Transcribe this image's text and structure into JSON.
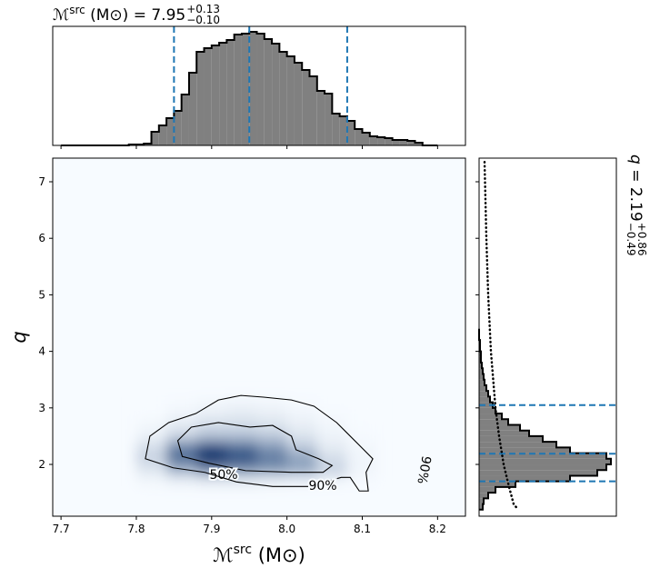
{
  "chart_data": [
    {
      "type": "histogram",
      "title": {
        "base": "ℳ",
        "sup": "src",
        "rest": " (M⊙) = ",
        "value": "7.95",
        "upper": "+0.13",
        "lower": "−0.10"
      },
      "bins": [
        7.7,
        7.71,
        7.72,
        7.73,
        7.74,
        7.75,
        7.76,
        7.77,
        7.78,
        7.79,
        7.8,
        7.81,
        7.82,
        7.83,
        7.84,
        7.85,
        7.86,
        7.87,
        7.88,
        7.89,
        7.9,
        7.91,
        7.92,
        7.93,
        7.94,
        7.95,
        7.96,
        7.97,
        7.98,
        7.99,
        8.0,
        8.01,
        8.02,
        8.03,
        8.04,
        8.05,
        8.06,
        8.07,
        8.08,
        8.09,
        8.1,
        8.11,
        8.12,
        8.13,
        8.14,
        8.15,
        8.16,
        8.17,
        8.18,
        8.19,
        8.2
      ],
      "values": [
        0,
        0,
        0,
        0,
        0,
        0,
        0,
        0,
        0,
        1,
        1,
        2,
        15,
        22,
        30,
        38,
        56,
        80,
        103,
        107,
        110,
        113,
        116,
        122,
        123,
        125,
        123,
        117,
        112,
        103,
        98,
        91,
        83,
        76,
        60,
        57,
        35,
        32,
        27,
        18,
        14,
        10,
        9,
        8,
        6,
        6,
        5,
        3,
        0,
        0
      ],
      "color": "#808080",
      "xlim": [
        7.689,
        8.237
      ],
      "xticks": [
        7.7,
        7.8,
        7.9,
        {
          "value": 8.0,
          "label": "8.0"
        },
        8.1,
        8.2
      ],
      "ylim": [
        0,
        131
      ],
      "quantiles": [
        7.85,
        7.95,
        8.08
      ],
      "quantile_color": "#1f77b4"
    },
    {
      "type": "heatmap",
      "xlabel": {
        "base": "ℳ",
        "sup": "src",
        "rest": " (M⊙)"
      },
      "ylabel": "q",
      "x_edges": [
        7.8,
        7.84,
        7.88,
        7.92,
        7.96,
        8.0,
        8.04,
        8.08,
        8.12
      ],
      "y_edges": [
        1.6,
        1.8,
        2.0,
        2.2,
        2.4,
        2.6,
        2.8,
        3.0,
        3.2
      ],
      "values": [
        [
          0.02,
          0.05,
          0.08,
          0.08,
          0.06,
          0.04,
          0.02,
          0.01
        ],
        [
          0.1,
          0.35,
          0.55,
          0.5,
          0.45,
          0.4,
          0.2,
          0.03
        ],
        [
          0.2,
          0.7,
          1.0,
          0.85,
          0.65,
          0.45,
          0.15,
          0.03
        ],
        [
          0.15,
          0.6,
          0.85,
          0.7,
          0.5,
          0.25,
          0.08,
          0.02
        ],
        [
          0.05,
          0.2,
          0.3,
          0.3,
          0.25,
          0.12,
          0.04,
          0.01
        ],
        [
          0.02,
          0.08,
          0.15,
          0.15,
          0.12,
          0.06,
          0.02,
          0
        ],
        [
          0,
          0.03,
          0.06,
          0.08,
          0.06,
          0.03,
          0.01,
          0
        ],
        [
          0,
          0.01,
          0.02,
          0.03,
          0.02,
          0.01,
          0,
          0
        ]
      ],
      "cmap": [
        "#f7fbff",
        "#08306b"
      ],
      "xlim": [
        7.689,
        8.237
      ],
      "xticks": [
        7.7,
        7.8,
        7.9,
        {
          "value": 8.0,
          "label": "8.0"
        },
        8.1,
        8.2
      ],
      "ylim": [
        1.084,
        7.418
      ],
      "yticks": [
        2,
        3,
        4,
        5,
        6,
        7
      ],
      "contours": [
        {
          "labels": [
            "50%"
          ],
          "x": [
            7.855,
            7.873,
            7.909,
            7.951,
            7.981,
            8.006,
            8.012,
            8.042,
            8.06,
            8.048,
            8.006,
            7.945,
            7.897,
            7.861
          ],
          "y": [
            2.42,
            2.66,
            2.74,
            2.66,
            2.69,
            2.5,
            2.26,
            2.1,
            1.98,
            1.86,
            1.86,
            1.89,
            2.02,
            2.14
          ]
        },
        {
          "labels": [
            "90%",
            "90%"
          ],
          "x": [
            7.812,
            7.818,
            7.843,
            7.879,
            7.909,
            7.939,
            7.969,
            8.006,
            8.036,
            8.066,
            8.096,
            8.114,
            8.105,
            8.108,
            8.096,
            8.084,
            8.072,
            8.03,
            7.981,
            7.933,
            7.891,
            7.849
          ],
          "y": [
            2.1,
            2.5,
            2.74,
            2.9,
            3.14,
            3.22,
            3.19,
            3.14,
            3.03,
            2.74,
            2.34,
            2.1,
            1.86,
            1.53,
            1.53,
            1.77,
            1.77,
            1.61,
            1.61,
            1.69,
            1.86,
            1.94
          ]
        }
      ]
    },
    {
      "type": "histogram",
      "orientation": "horizontal",
      "title": {
        "base": "q = ",
        "value": "2.19",
        "upper": "+0.86",
        "lower": "−0.49"
      },
      "bins": [
        1.2,
        1.3,
        1.4,
        1.5,
        1.6,
        1.7,
        1.8,
        1.9,
        2.0,
        2.1,
        2.2,
        2.3,
        2.4,
        2.5,
        2.6,
        2.7,
        2.8,
        2.9,
        3.0,
        3.1,
        3.2,
        3.3,
        3.4,
        3.5,
        3.6,
        3.7,
        3.8,
        3.9,
        4.0,
        4.1,
        4.2,
        4.3,
        4.4
      ],
      "values": [
        4,
        5,
        10,
        18,
        40,
        100,
        130,
        140,
        145,
        140,
        100,
        85,
        70,
        55,
        45,
        32,
        25,
        18,
        15,
        12,
        10,
        8,
        6,
        5,
        4,
        3,
        2,
        2,
        1,
        1,
        0,
        0
      ],
      "color": "#808080",
      "xlim": [
        0,
        151
      ],
      "ylim": [
        1.084,
        7.418
      ],
      "yticks": [
        2,
        3,
        4,
        5,
        6,
        7
      ],
      "quantiles": [
        1.7,
        2.19,
        3.05
      ],
      "quantile_color": "#1f77b4",
      "prior": {
        "y": [
          7.35,
          6,
          5,
          4,
          3,
          2.5,
          2,
          1.6,
          1.3,
          1.2
        ],
        "values": [
          6,
          8,
          10,
          13,
          18,
          22,
          27,
          33,
          38,
          43
        ]
      }
    }
  ]
}
